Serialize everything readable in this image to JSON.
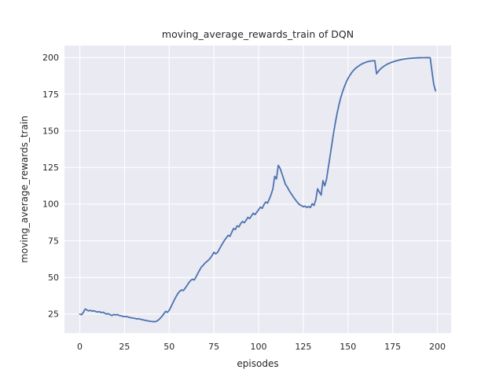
{
  "chart_data": {
    "type": "line",
    "title": "moving_average_rewards_train of DQN",
    "xlabel": "episodes",
    "ylabel": "moving_average_rewards_train",
    "x_ticks": [
      0,
      25,
      50,
      75,
      100,
      125,
      150,
      175,
      200
    ],
    "y_ticks": [
      25,
      50,
      75,
      100,
      125,
      150,
      175,
      200
    ],
    "xlim": [
      -8.6,
      207.7
    ],
    "ylim": [
      12.1,
      208.2
    ],
    "grid": true,
    "legend_position": "none",
    "style": {
      "plot_bg": "#eaeaf2",
      "grid_color": "#ffffff",
      "text_color": "#262626",
      "line_color": "#4c72b0",
      "line_width": 1.8
    },
    "series": [
      {
        "name": "moving_average_rewards_train",
        "points": [
          [
            0,
            25.0
          ],
          [
            1,
            24.6
          ],
          [
            2,
            26.2
          ],
          [
            3,
            28.5
          ],
          [
            4,
            27.8
          ],
          [
            5,
            27.2
          ],
          [
            6,
            27.6
          ],
          [
            7,
            27.0
          ],
          [
            8,
            27.3
          ],
          [
            9,
            26.7
          ],
          [
            10,
            26.4
          ],
          [
            11,
            26.7
          ],
          [
            12,
            26.0
          ],
          [
            13,
            26.3
          ],
          [
            14,
            25.6
          ],
          [
            15,
            25.0
          ],
          [
            16,
            25.3
          ],
          [
            17,
            24.6
          ],
          [
            18,
            24.0
          ],
          [
            19,
            24.8
          ],
          [
            20,
            24.4
          ],
          [
            21,
            24.7
          ],
          [
            22,
            24.1
          ],
          [
            23,
            23.8
          ],
          [
            24,
            23.5
          ],
          [
            25,
            23.2
          ],
          [
            26,
            23.4
          ],
          [
            27,
            23.0
          ],
          [
            28,
            22.7
          ],
          [
            29,
            22.4
          ],
          [
            30,
            22.2
          ],
          [
            31,
            22.0
          ],
          [
            32,
            21.7
          ],
          [
            33,
            21.9
          ],
          [
            34,
            21.5
          ],
          [
            35,
            21.2
          ],
          [
            36,
            20.9
          ],
          [
            37,
            20.7
          ],
          [
            38,
            20.4
          ],
          [
            39,
            20.2
          ],
          [
            40,
            20.0
          ],
          [
            41,
            19.9
          ],
          [
            42,
            19.8
          ],
          [
            43,
            20.2
          ],
          [
            44,
            21.0
          ],
          [
            45,
            22.2
          ],
          [
            46,
            23.6
          ],
          [
            47,
            25.2
          ],
          [
            48,
            26.9
          ],
          [
            49,
            26.2
          ],
          [
            50,
            27.6
          ],
          [
            51,
            30.0
          ],
          [
            52,
            32.5
          ],
          [
            53,
            35.0
          ],
          [
            54,
            37.3
          ],
          [
            55,
            39.3
          ],
          [
            56,
            40.7
          ],
          [
            57,
            41.5
          ],
          [
            58,
            41.1
          ],
          [
            59,
            42.8
          ],
          [
            60,
            44.6
          ],
          [
            61,
            46.5
          ],
          [
            62,
            47.9
          ],
          [
            63,
            48.8
          ],
          [
            64,
            48.3
          ],
          [
            65,
            50.3
          ],
          [
            66,
            52.7
          ],
          [
            67,
            55.0
          ],
          [
            68,
            57.1
          ],
          [
            69,
            58.3
          ],
          [
            70,
            59.8
          ],
          [
            71,
            60.8
          ],
          [
            72,
            61.9
          ],
          [
            73,
            63.2
          ],
          [
            74,
            65.0
          ],
          [
            75,
            67.2
          ],
          [
            76,
            66.1
          ],
          [
            77,
            67.0
          ],
          [
            78,
            69.2
          ],
          [
            79,
            71.4
          ],
          [
            80,
            73.5
          ],
          [
            81,
            75.5
          ],
          [
            82,
            77.1
          ],
          [
            83,
            78.7
          ],
          [
            84,
            78.1
          ],
          [
            85,
            80.8
          ],
          [
            86,
            83.4
          ],
          [
            87,
            82.7
          ],
          [
            88,
            85.2
          ],
          [
            89,
            84.5
          ],
          [
            90,
            86.8
          ],
          [
            91,
            88.2
          ],
          [
            92,
            87.3
          ],
          [
            93,
            89.0
          ],
          [
            94,
            91.0
          ],
          [
            95,
            90.2
          ],
          [
            96,
            92.0
          ],
          [
            97,
            93.8
          ],
          [
            98,
            92.9
          ],
          [
            99,
            94.5
          ],
          [
            100,
            96.2
          ],
          [
            101,
            98.0
          ],
          [
            102,
            97.1
          ],
          [
            103,
            99.7
          ],
          [
            104,
            101.5
          ],
          [
            105,
            100.7
          ],
          [
            106,
            103.5
          ],
          [
            107,
            106.5
          ],
          [
            108,
            110.5
          ],
          [
            109,
            119.0
          ],
          [
            110,
            117.2
          ],
          [
            111,
            126.5
          ],
          [
            112,
            124.5
          ],
          [
            113,
            121.0
          ],
          [
            114,
            117.3
          ],
          [
            115,
            113.6
          ],
          [
            116,
            111.8
          ],
          [
            117,
            109.5
          ],
          [
            118,
            107.5
          ],
          [
            119,
            105.8
          ],
          [
            120,
            104.0
          ],
          [
            121,
            102.3
          ],
          [
            122,
            100.8
          ],
          [
            123,
            99.6
          ],
          [
            124,
            99.0
          ],
          [
            125,
            98.2
          ],
          [
            126,
            98.7
          ],
          [
            127,
            97.7
          ],
          [
            128,
            98.4
          ],
          [
            129,
            97.7
          ],
          [
            130,
            100.3
          ],
          [
            131,
            99.1
          ],
          [
            132,
            103.0
          ],
          [
            133,
            110.5
          ],
          [
            134,
            108.2
          ],
          [
            135,
            106.2
          ],
          [
            136,
            116.0
          ],
          [
            137,
            112.5
          ],
          [
            138,
            117.0
          ],
          [
            139,
            125.0
          ],
          [
            140,
            133.0
          ],
          [
            141,
            141.0
          ],
          [
            142,
            149.0
          ],
          [
            143,
            156.0
          ],
          [
            144,
            162.5
          ],
          [
            145,
            168.0
          ],
          [
            146,
            172.8
          ],
          [
            147,
            176.8
          ],
          [
            148,
            180.2
          ],
          [
            149,
            183.2
          ],
          [
            150,
            185.7
          ],
          [
            151,
            187.8
          ],
          [
            152,
            189.6
          ],
          [
            153,
            191.1
          ],
          [
            154,
            192.4
          ],
          [
            155,
            193.4
          ],
          [
            156,
            194.3
          ],
          [
            157,
            195.1
          ],
          [
            158,
            195.8
          ],
          [
            159,
            196.3
          ],
          [
            160,
            196.8
          ],
          [
            161,
            197.2
          ],
          [
            162,
            197.5
          ],
          [
            163,
            197.7
          ],
          [
            164,
            197.8
          ],
          [
            165,
            197.9
          ],
          [
            166,
            188.9
          ],
          [
            167,
            190.6
          ],
          [
            168,
            192.0
          ],
          [
            169,
            193.1
          ],
          [
            170,
            194.0
          ],
          [
            171,
            194.8
          ],
          [
            172,
            195.5
          ],
          [
            173,
            196.1
          ],
          [
            174,
            196.6
          ],
          [
            175,
            197.0
          ],
          [
            176,
            197.4
          ],
          [
            177,
            197.8
          ],
          [
            178,
            198.1
          ],
          [
            179,
            198.4
          ],
          [
            180,
            198.7
          ],
          [
            181,
            198.9
          ],
          [
            182,
            199.1
          ],
          [
            183,
            199.3
          ],
          [
            184,
            199.4
          ],
          [
            185,
            199.5
          ],
          [
            186,
            199.6
          ],
          [
            187,
            199.7
          ],
          [
            188,
            199.75
          ],
          [
            189,
            199.8
          ],
          [
            190,
            199.85
          ],
          [
            191,
            199.9
          ],
          [
            192,
            199.9
          ],
          [
            193,
            199.9
          ],
          [
            194,
            199.92
          ],
          [
            195,
            199.93
          ],
          [
            196,
            199.9
          ],
          [
            197,
            190.5
          ],
          [
            198,
            181.5
          ],
          [
            199,
            177.3
          ]
        ]
      }
    ]
  }
}
